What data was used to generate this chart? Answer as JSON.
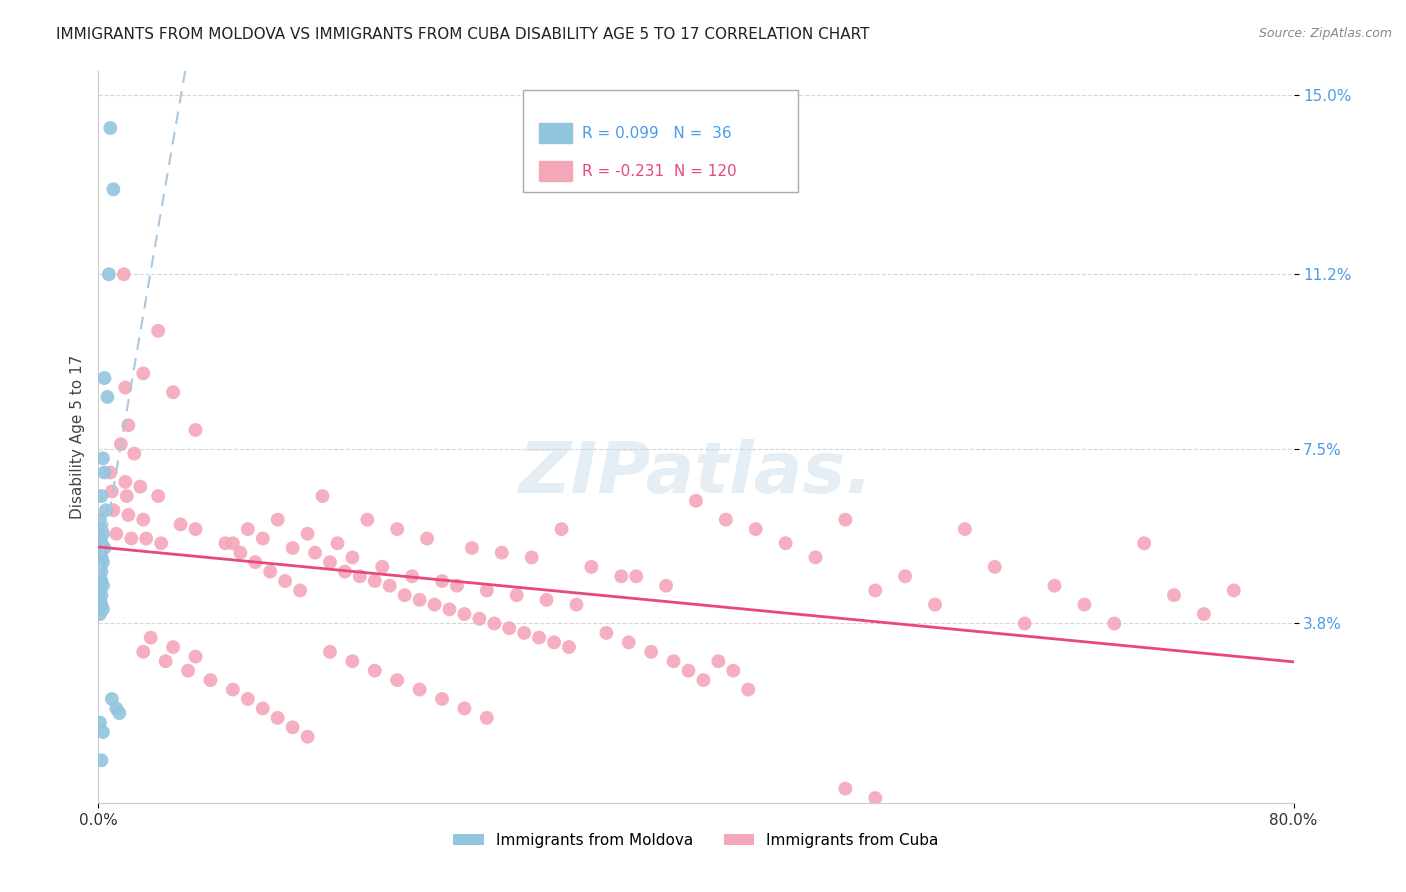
{
  "title": "IMMIGRANTS FROM MOLDOVA VS IMMIGRANTS FROM CUBA DISABILITY AGE 5 TO 17 CORRELATION CHART",
  "source": "Source: ZipAtlas.com",
  "ylabel": "Disability Age 5 to 17",
  "xlim": [
    0.0,
    0.8
  ],
  "ylim": [
    0.0,
    0.155
  ],
  "ytick_values": [
    0.038,
    0.075,
    0.112,
    0.15
  ],
  "ytick_labels": [
    "3.8%",
    "7.5%",
    "11.2%",
    "15.0%"
  ],
  "moldova_R": 0.099,
  "moldova_N": 36,
  "cuba_R": -0.231,
  "cuba_N": 120,
  "moldova_color": "#92C5DE",
  "cuba_color": "#F4A7B9",
  "moldova_line_color": "#4C9BE8",
  "cuba_line_color": "#E8497A",
  "moldova_trend_color": "#aac8e0",
  "background_color": "#ffffff",
  "grid_color": "#cccccc",
  "title_fontsize": 11,
  "label_fontsize": 11,
  "tick_fontsize": 11,
  "moldova_scatter": [
    [
      0.008,
      0.143
    ],
    [
      0.01,
      0.13
    ],
    [
      0.007,
      0.112
    ],
    [
      0.004,
      0.09
    ],
    [
      0.006,
      0.086
    ],
    [
      0.003,
      0.073
    ],
    [
      0.004,
      0.07
    ],
    [
      0.002,
      0.065
    ],
    [
      0.005,
      0.062
    ],
    [
      0.001,
      0.06
    ],
    [
      0.002,
      0.058
    ],
    [
      0.003,
      0.057
    ],
    [
      0.001,
      0.056
    ],
    [
      0.002,
      0.055
    ],
    [
      0.004,
      0.054
    ],
    [
      0.001,
      0.053
    ],
    [
      0.002,
      0.052
    ],
    [
      0.003,
      0.051
    ],
    [
      0.001,
      0.05
    ],
    [
      0.002,
      0.049
    ],
    [
      0.001,
      0.048
    ],
    [
      0.001,
      0.047
    ],
    [
      0.002,
      0.047
    ],
    [
      0.003,
      0.046
    ],
    [
      0.001,
      0.045
    ],
    [
      0.002,
      0.044
    ],
    [
      0.001,
      0.043
    ],
    [
      0.002,
      0.042
    ],
    [
      0.003,
      0.041
    ],
    [
      0.001,
      0.04
    ],
    [
      0.009,
      0.022
    ],
    [
      0.012,
      0.02
    ],
    [
      0.014,
      0.019
    ],
    [
      0.001,
      0.017
    ],
    [
      0.003,
      0.015
    ],
    [
      0.002,
      0.009
    ]
  ],
  "cuba_scatter": [
    [
      0.017,
      0.112
    ],
    [
      0.04,
      0.1
    ],
    [
      0.03,
      0.091
    ],
    [
      0.018,
      0.088
    ],
    [
      0.05,
      0.087
    ],
    [
      0.02,
      0.08
    ],
    [
      0.065,
      0.079
    ],
    [
      0.015,
      0.076
    ],
    [
      0.024,
      0.074
    ],
    [
      0.008,
      0.07
    ],
    [
      0.018,
      0.068
    ],
    [
      0.028,
      0.067
    ],
    [
      0.009,
      0.066
    ],
    [
      0.019,
      0.065
    ],
    [
      0.04,
      0.065
    ],
    [
      0.01,
      0.062
    ],
    [
      0.02,
      0.061
    ],
    [
      0.03,
      0.06
    ],
    [
      0.055,
      0.059
    ],
    [
      0.065,
      0.058
    ],
    [
      0.012,
      0.057
    ],
    [
      0.022,
      0.056
    ],
    [
      0.032,
      0.056
    ],
    [
      0.042,
      0.055
    ],
    [
      0.085,
      0.055
    ],
    [
      0.15,
      0.065
    ],
    [
      0.18,
      0.06
    ],
    [
      0.2,
      0.058
    ],
    [
      0.22,
      0.056
    ],
    [
      0.25,
      0.054
    ],
    [
      0.27,
      0.053
    ],
    [
      0.29,
      0.052
    ],
    [
      0.31,
      0.058
    ],
    [
      0.33,
      0.05
    ],
    [
      0.35,
      0.048
    ],
    [
      0.12,
      0.06
    ],
    [
      0.14,
      0.057
    ],
    [
      0.16,
      0.055
    ],
    [
      0.17,
      0.052
    ],
    [
      0.19,
      0.05
    ],
    [
      0.21,
      0.048
    ],
    [
      0.23,
      0.047
    ],
    [
      0.24,
      0.046
    ],
    [
      0.26,
      0.045
    ],
    [
      0.28,
      0.044
    ],
    [
      0.3,
      0.043
    ],
    [
      0.32,
      0.042
    ],
    [
      0.1,
      0.058
    ],
    [
      0.11,
      0.056
    ],
    [
      0.13,
      0.054
    ],
    [
      0.145,
      0.053
    ],
    [
      0.155,
      0.051
    ],
    [
      0.165,
      0.049
    ],
    [
      0.175,
      0.048
    ],
    [
      0.185,
      0.047
    ],
    [
      0.195,
      0.046
    ],
    [
      0.205,
      0.044
    ],
    [
      0.215,
      0.043
    ],
    [
      0.225,
      0.042
    ],
    [
      0.235,
      0.041
    ],
    [
      0.245,
      0.04
    ],
    [
      0.255,
      0.039
    ],
    [
      0.265,
      0.038
    ],
    [
      0.275,
      0.037
    ],
    [
      0.285,
      0.036
    ],
    [
      0.295,
      0.035
    ],
    [
      0.305,
      0.034
    ],
    [
      0.315,
      0.033
    ],
    [
      0.09,
      0.055
    ],
    [
      0.095,
      0.053
    ],
    [
      0.105,
      0.051
    ],
    [
      0.115,
      0.049
    ],
    [
      0.125,
      0.047
    ],
    [
      0.135,
      0.045
    ],
    [
      0.36,
      0.048
    ],
    [
      0.38,
      0.046
    ],
    [
      0.4,
      0.064
    ],
    [
      0.42,
      0.06
    ],
    [
      0.44,
      0.058
    ],
    [
      0.46,
      0.055
    ],
    [
      0.48,
      0.052
    ],
    [
      0.5,
      0.06
    ],
    [
      0.52,
      0.045
    ],
    [
      0.54,
      0.048
    ],
    [
      0.56,
      0.042
    ],
    [
      0.58,
      0.058
    ],
    [
      0.6,
      0.05
    ],
    [
      0.62,
      0.038
    ],
    [
      0.64,
      0.046
    ],
    [
      0.66,
      0.042
    ],
    [
      0.68,
      0.038
    ],
    [
      0.7,
      0.055
    ],
    [
      0.72,
      0.044
    ],
    [
      0.74,
      0.04
    ],
    [
      0.76,
      0.045
    ],
    [
      0.34,
      0.036
    ],
    [
      0.355,
      0.034
    ],
    [
      0.37,
      0.032
    ],
    [
      0.385,
      0.03
    ],
    [
      0.395,
      0.028
    ],
    [
      0.405,
      0.026
    ],
    [
      0.415,
      0.03
    ],
    [
      0.425,
      0.028
    ],
    [
      0.435,
      0.024
    ],
    [
      0.03,
      0.032
    ],
    [
      0.045,
      0.03
    ],
    [
      0.06,
      0.028
    ],
    [
      0.075,
      0.026
    ],
    [
      0.09,
      0.024
    ],
    [
      0.1,
      0.022
    ],
    [
      0.11,
      0.02
    ],
    [
      0.12,
      0.018
    ],
    [
      0.13,
      0.016
    ],
    [
      0.14,
      0.014
    ],
    [
      0.155,
      0.032
    ],
    [
      0.17,
      0.03
    ],
    [
      0.185,
      0.028
    ],
    [
      0.2,
      0.026
    ],
    [
      0.215,
      0.024
    ],
    [
      0.23,
      0.022
    ],
    [
      0.245,
      0.02
    ],
    [
      0.26,
      0.018
    ],
    [
      0.035,
      0.035
    ],
    [
      0.05,
      0.033
    ],
    [
      0.065,
      0.031
    ],
    [
      0.5,
      0.003
    ],
    [
      0.52,
      0.001
    ]
  ]
}
